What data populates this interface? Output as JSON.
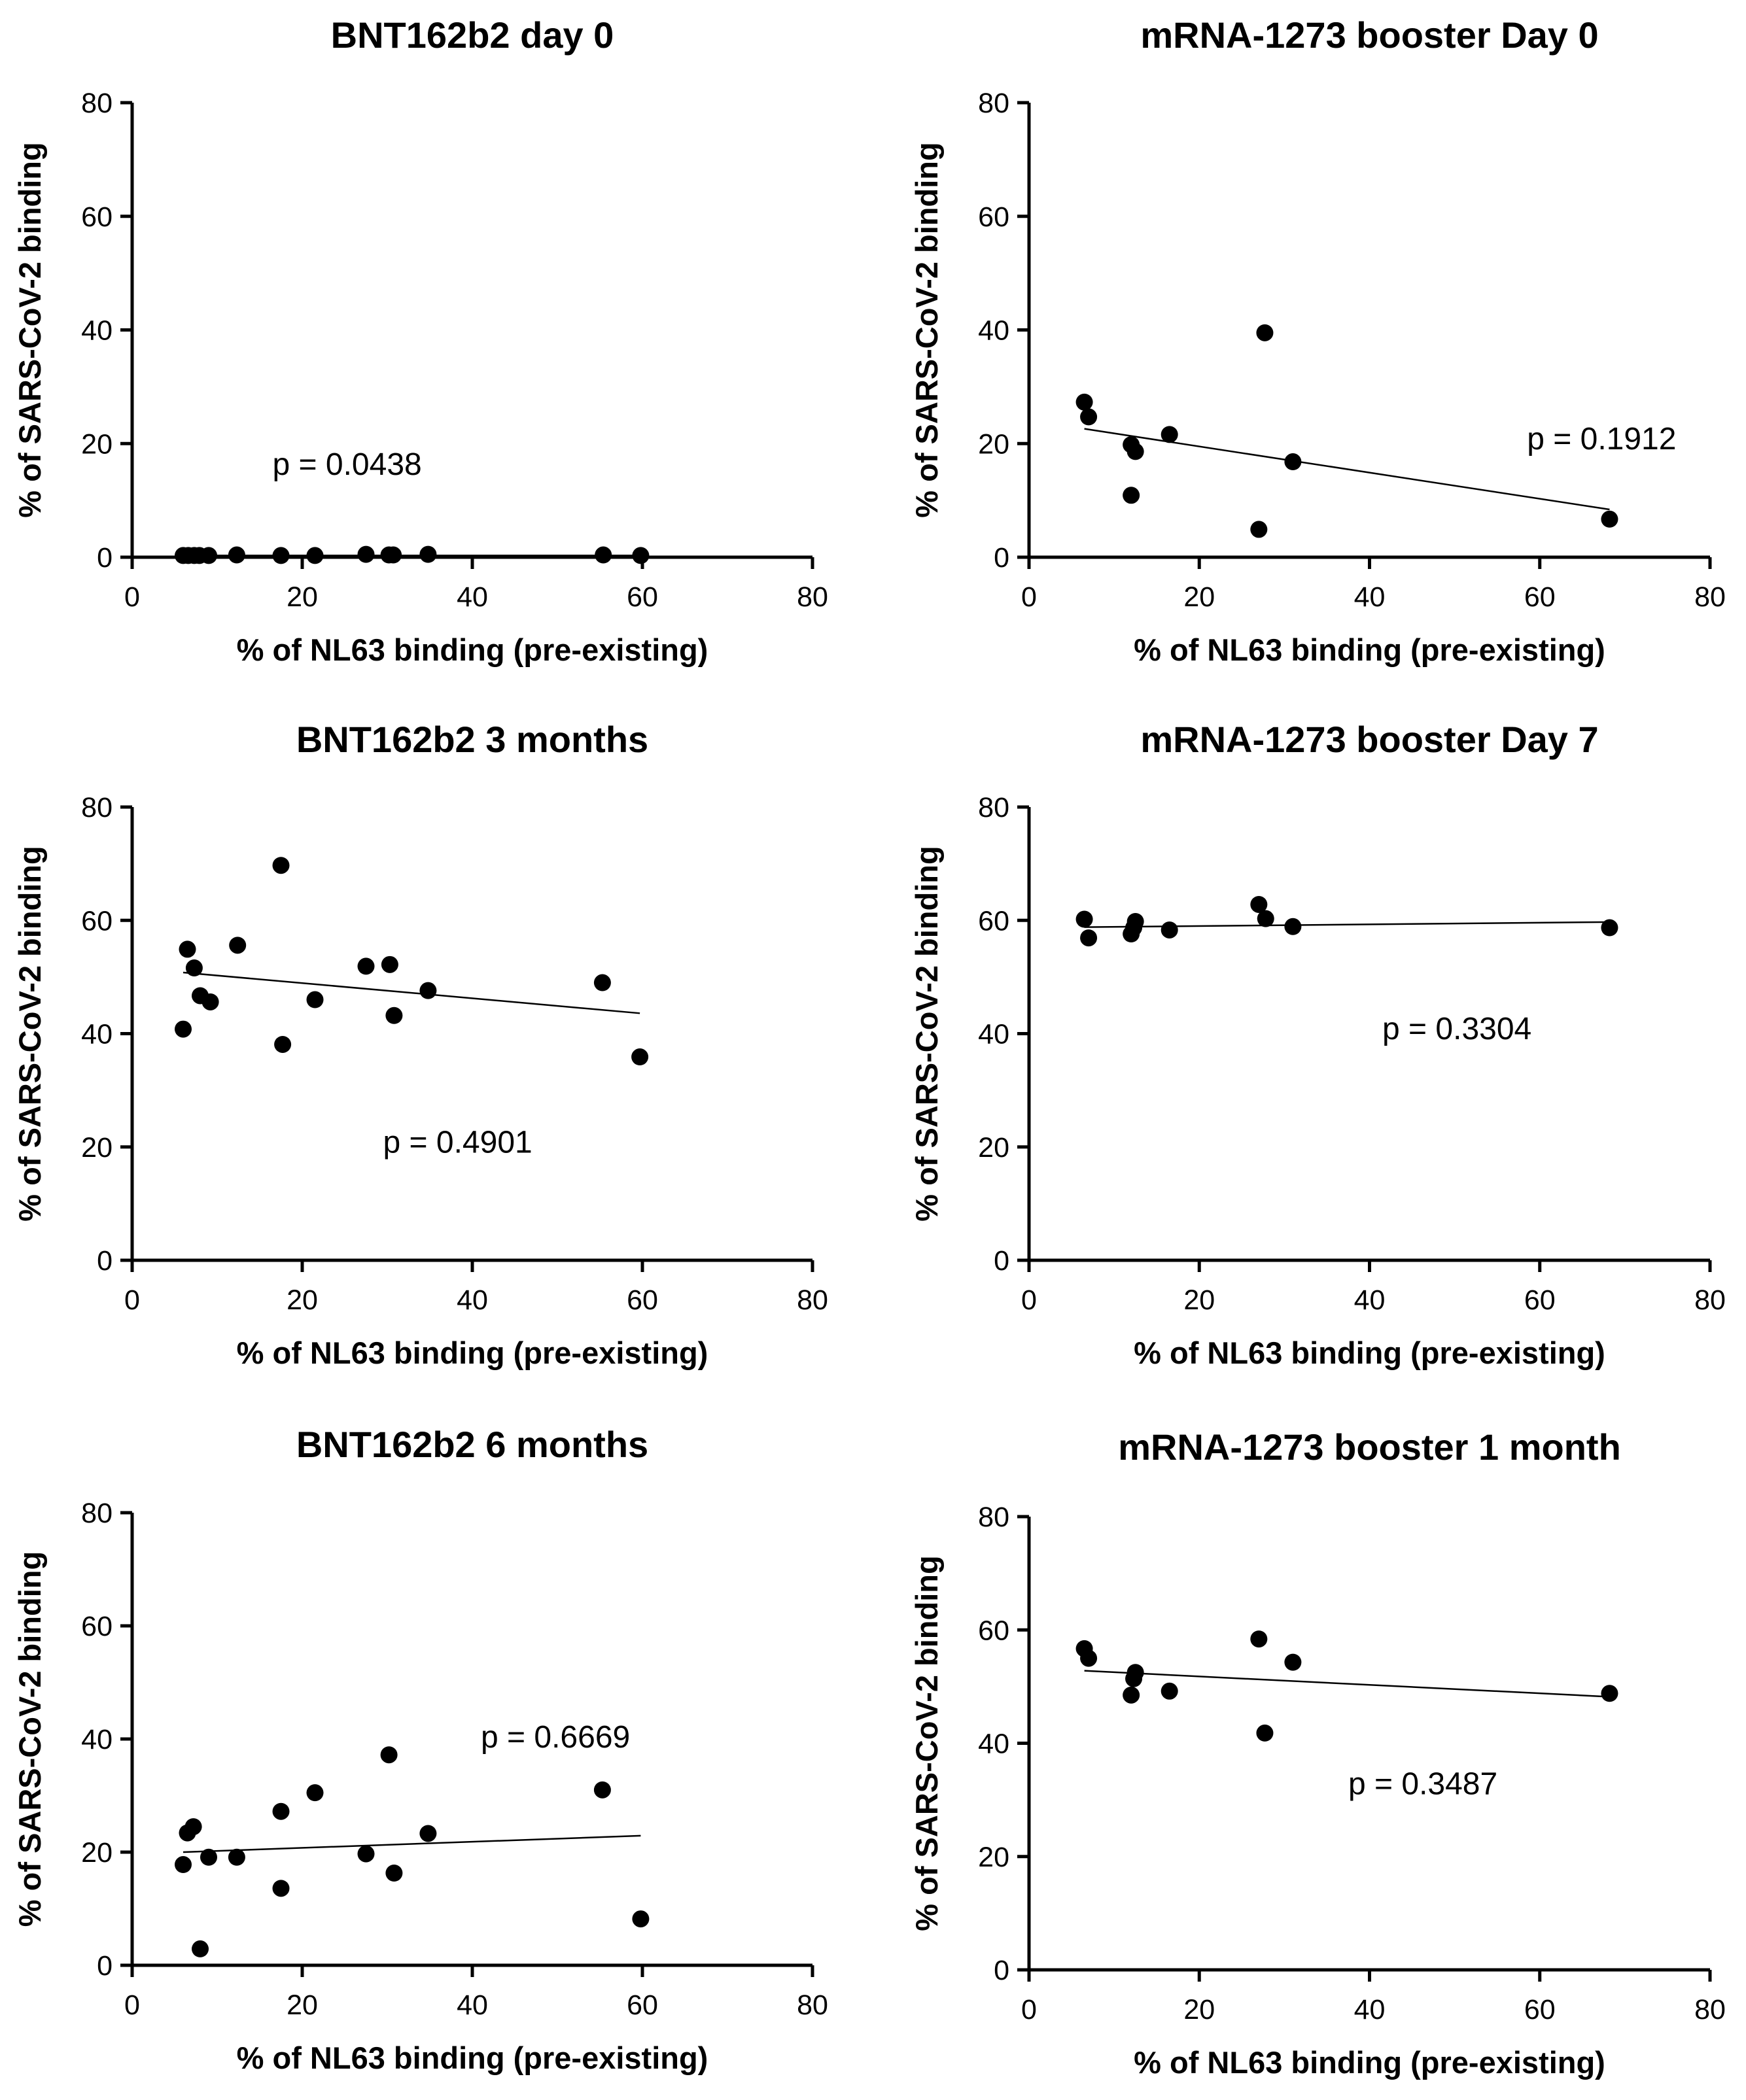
{
  "chart_data": [
    {
      "type": "scatter",
      "title": "BNT162b2 day 0",
      "xlabel": "% of NL63 binding (pre-existing)",
      "ylabel": "% of SARS-CoV-2 binding",
      "xlim": [
        0,
        80
      ],
      "ylim": [
        0,
        80
      ],
      "xticks": [
        0,
        20,
        40,
        60,
        80
      ],
      "yticks": [
        0,
        20,
        40,
        60,
        80
      ],
      "p_label": "p = 0.0438",
      "p_pos": [
        16.5,
        14.5
      ],
      "points": [
        [
          6,
          0.3
        ],
        [
          6.6,
          0.3
        ],
        [
          7.3,
          0.3
        ],
        [
          7.9,
          0.3
        ],
        [
          9,
          0.3
        ],
        [
          12.3,
          0.4
        ],
        [
          17.5,
          0.3
        ],
        [
          21.5,
          0.3
        ],
        [
          27.5,
          0.5
        ],
        [
          30.2,
          0.4
        ],
        [
          30.7,
          0.4
        ],
        [
          34.8,
          0.5
        ],
        [
          55.4,
          0.4
        ],
        [
          59.8,
          0.3
        ]
      ],
      "fit": [
        [
          6,
          0.3
        ],
        [
          59.8,
          0.3
        ]
      ]
    },
    {
      "type": "scatter",
      "title": "mRNA-1273 booster Day 0",
      "xlabel": "% of NL63 binding (pre-existing)",
      "ylabel": "% of SARS-CoV-2 binding",
      "xlim": [
        0,
        80
      ],
      "ylim": [
        0,
        80
      ],
      "xticks": [
        0,
        20,
        40,
        60,
        80
      ],
      "yticks": [
        0,
        20,
        40,
        60,
        80
      ],
      "p_label": "p = 0.1912",
      "p_pos": [
        58.5,
        19
      ],
      "points": [
        [
          6.5,
          27.3
        ],
        [
          7,
          24.7
        ],
        [
          12,
          19.8
        ],
        [
          12.5,
          18.6
        ],
        [
          12,
          10.9
        ],
        [
          16.5,
          21.6
        ],
        [
          27,
          4.9
        ],
        [
          27.7,
          39.5
        ],
        [
          31,
          16.8
        ],
        [
          68.2,
          6.7
        ]
      ],
      "fit": [
        [
          6.5,
          22.6
        ],
        [
          68.2,
          8.4
        ]
      ]
    },
    {
      "type": "scatter",
      "title": "BNT162b2 3 months",
      "xlabel": "% of NL63 binding (pre-existing)",
      "ylabel": "% of SARS-CoV-2 binding",
      "xlim": [
        0,
        80
      ],
      "ylim": [
        0,
        80
      ],
      "xticks": [
        0,
        20,
        40,
        60,
        80
      ],
      "yticks": [
        0,
        20,
        40,
        60,
        80
      ],
      "p_label": "p = 0.4901",
      "p_pos": [
        29.5,
        19
      ],
      "points": [
        [
          6,
          40.8
        ],
        [
          6.5,
          54.9
        ],
        [
          7.3,
          51.6
        ],
        [
          8,
          46.7
        ],
        [
          9.2,
          45.6
        ],
        [
          12.4,
          55.6
        ],
        [
          17.5,
          69.7
        ],
        [
          17.7,
          38.1
        ],
        [
          21.5,
          46
        ],
        [
          27.5,
          51.9
        ],
        [
          30.3,
          52.2
        ],
        [
          30.8,
          43.2
        ],
        [
          34.8,
          47.6
        ],
        [
          55.3,
          49
        ],
        [
          59.7,
          35.9
        ]
      ],
      "fit": [
        [
          6,
          50.8
        ],
        [
          59.7,
          43.6
        ]
      ]
    },
    {
      "type": "scatter",
      "title": "mRNA-1273 booster Day 7",
      "xlabel": "% of NL63 binding (pre-existing)",
      "ylabel": "% of SARS-CoV-2 binding",
      "xlim": [
        0,
        80
      ],
      "ylim": [
        0,
        80
      ],
      "xticks": [
        0,
        20,
        40,
        60,
        80
      ],
      "yticks": [
        0,
        20,
        40,
        60,
        80
      ],
      "p_label": "p = 0.3304",
      "p_pos": [
        41.5,
        39
      ],
      "points": [
        [
          6.5,
          60.2
        ],
        [
          7,
          56.9
        ],
        [
          12,
          57.6
        ],
        [
          12.3,
          58.7
        ],
        [
          12.5,
          59.8
        ],
        [
          16.5,
          58.3
        ],
        [
          27,
          62.8
        ],
        [
          27.8,
          60.3
        ],
        [
          31,
          58.9
        ],
        [
          68.2,
          58.7
        ]
      ],
      "fit": [
        [
          6.5,
          58.8
        ],
        [
          68.2,
          59.7
        ]
      ]
    },
    {
      "type": "scatter",
      "title": "BNT162b2 6 months",
      "xlabel": "% of NL63 binding (pre-existing)",
      "ylabel": "% of SARS-CoV-2 binding",
      "xlim": [
        0,
        80
      ],
      "ylim": [
        0,
        80
      ],
      "xticks": [
        0,
        20,
        40,
        60,
        80
      ],
      "yticks": [
        0,
        20,
        40,
        60,
        80
      ],
      "p_label": "p = 0.6669",
      "p_pos": [
        41,
        38.5
      ],
      "points": [
        [
          6,
          17.8
        ],
        [
          6.5,
          23.4
        ],
        [
          7.2,
          24.5
        ],
        [
          8,
          2.9
        ],
        [
          9,
          19.1
        ],
        [
          12.3,
          19.1
        ],
        [
          17.5,
          13.6
        ],
        [
          17.5,
          27.2
        ],
        [
          21.5,
          30.5
        ],
        [
          27.5,
          19.7
        ],
        [
          30.2,
          37.2
        ],
        [
          30.8,
          16.3
        ],
        [
          34.8,
          23.3
        ],
        [
          55.3,
          31
        ],
        [
          59.8,
          8.2
        ]
      ],
      "fit": [
        [
          6,
          20
        ],
        [
          59.8,
          22.9
        ]
      ]
    },
    {
      "type": "scatter",
      "title": "mRNA-1273 booster 1 month",
      "xlabel": "% of NL63 binding (pre-existing)",
      "ylabel": "% of SARS-CoV-2 binding",
      "xlim": [
        0,
        80
      ],
      "ylim": [
        0,
        80
      ],
      "xticks": [
        0,
        20,
        40,
        60,
        80
      ],
      "yticks": [
        0,
        20,
        40,
        60,
        80
      ],
      "p_label": "p = 0.3487",
      "p_pos": [
        37.5,
        31
      ],
      "points": [
        [
          6.5,
          56.7
        ],
        [
          7,
          55
        ],
        [
          12,
          48.5
        ],
        [
          12.3,
          51.4
        ],
        [
          12.5,
          52.5
        ],
        [
          16.5,
          49.2
        ],
        [
          27,
          58.4
        ],
        [
          27.7,
          41.8
        ],
        [
          31,
          54.3
        ],
        [
          68.2,
          48.8
        ]
      ],
      "fit": [
        [
          6.5,
          52.8
        ],
        [
          68.2,
          48.2
        ]
      ]
    }
  ]
}
